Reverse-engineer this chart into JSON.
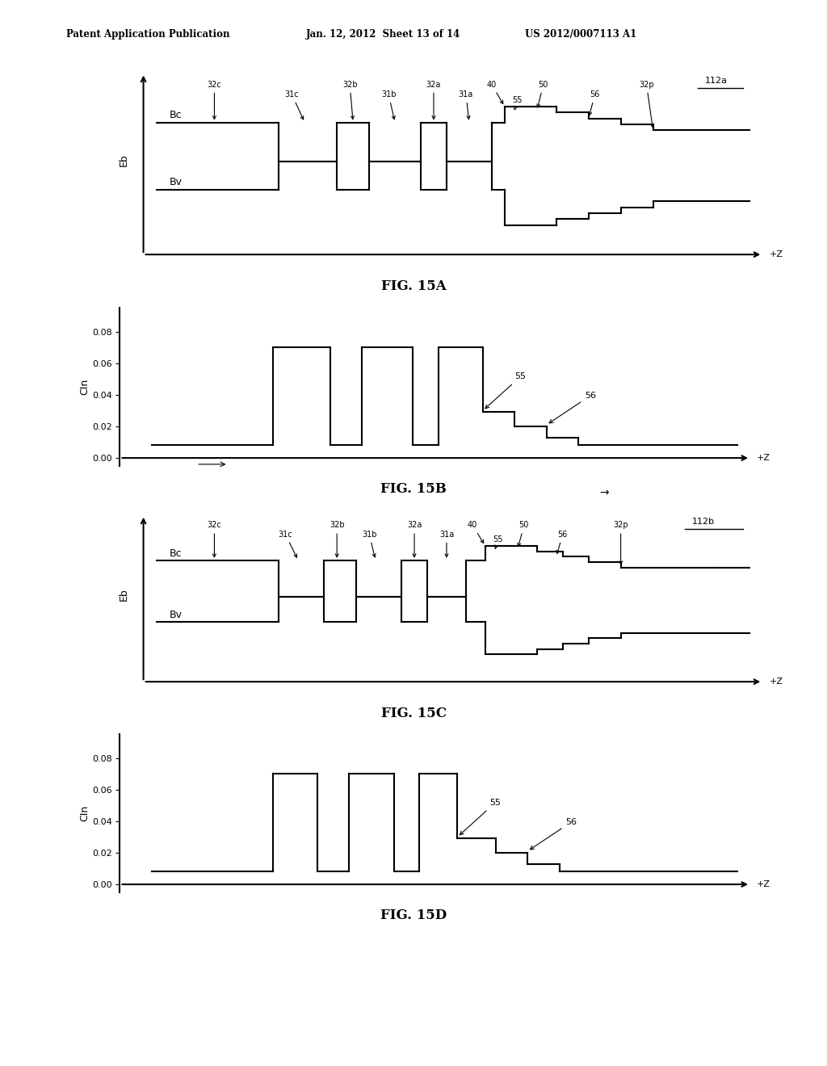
{
  "header_left": "Patent Application Publication",
  "header_mid": "Jan. 12, 2012  Sheet 13 of 14",
  "header_right": "US 2012/0007113 A1",
  "fig_labels": [
    "FIG. 15A",
    "FIG. 15B",
    "FIG. 15C",
    "FIG. 15D"
  ],
  "background_color": "#ffffff",
  "line_color": "#000000"
}
